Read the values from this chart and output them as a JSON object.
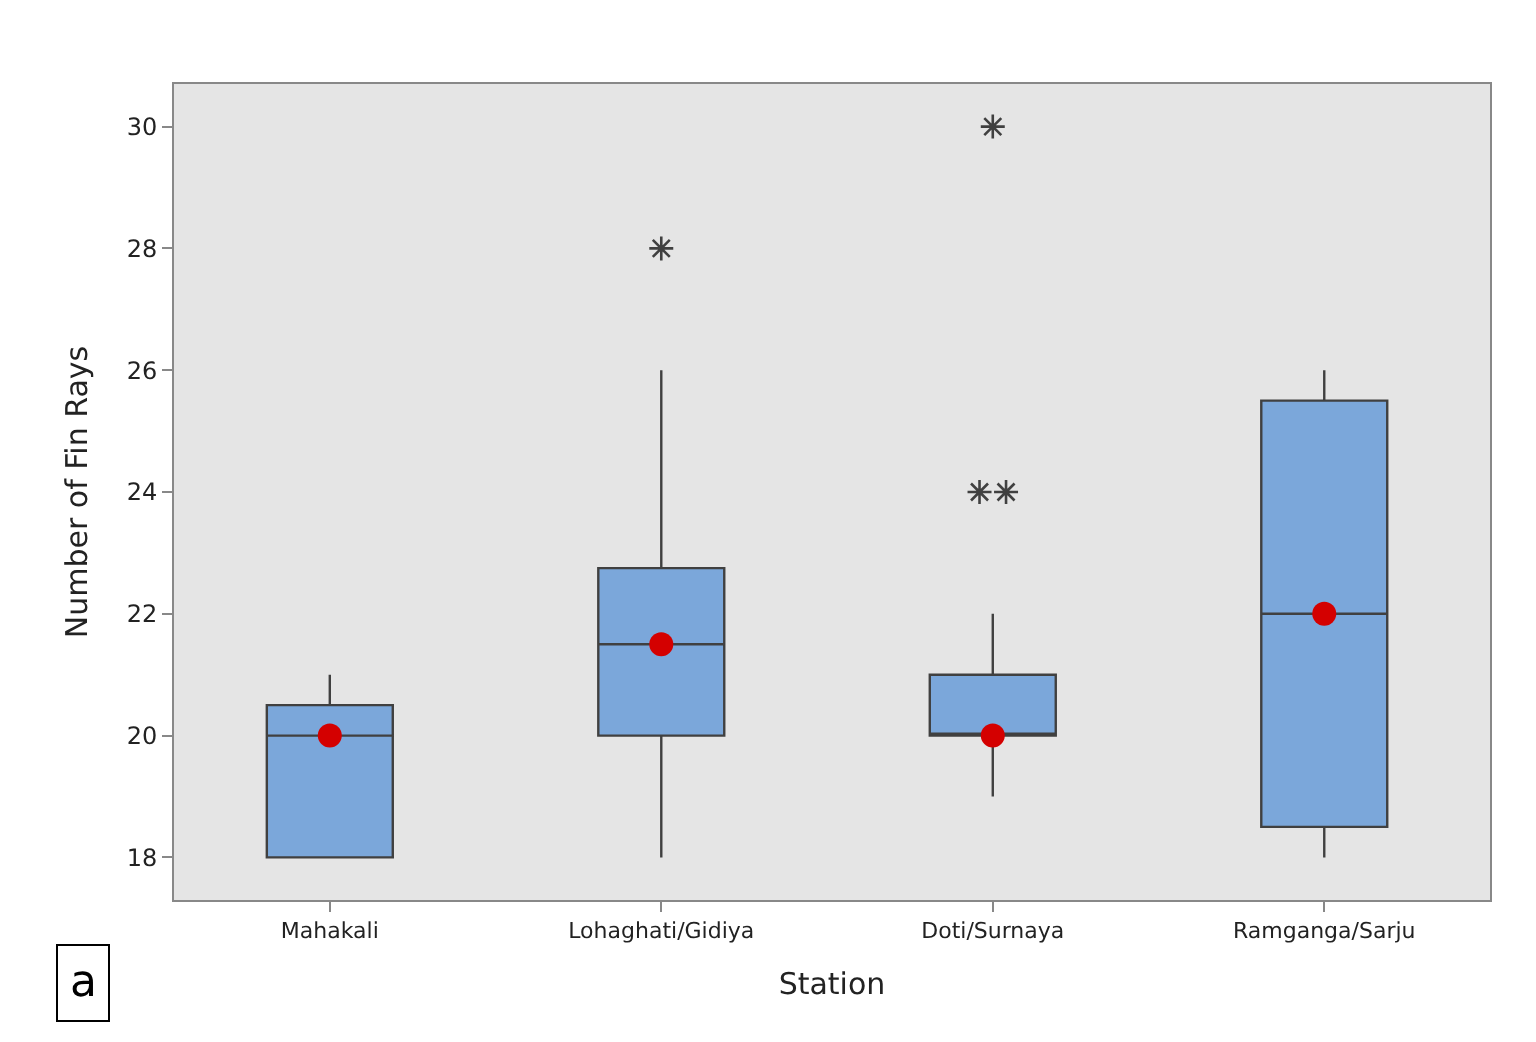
{
  "chart_data": {
    "type": "box",
    "xlabel": "Station",
    "ylabel": "Number of Fin Rays",
    "categories": [
      "Mahakali",
      "Lohaghati/Gidiya",
      "Doti/Surnaya",
      "Ramganga/Sarju"
    ],
    "boxes": [
      {
        "low": 18,
        "q1": 18,
        "median": 20,
        "q3": 20.5,
        "high": 21,
        "mean": 20
      },
      {
        "low": 18,
        "q1": 20,
        "median": 21.5,
        "q3": 22.75,
        "high": 26,
        "mean": 21.5,
        "outliers": [
          28
        ]
      },
      {
        "low": 19,
        "q1": 20,
        "median": 20,
        "q3": 21,
        "high": 22,
        "mean": 20,
        "outliers": [
          24,
          24,
          30
        ]
      },
      {
        "low": 18,
        "q1": 18.5,
        "median": 22,
        "q3": 25.5,
        "high": 26,
        "mean": 22
      }
    ],
    "color": "#7ba7da",
    "ylim": [
      17.3,
      30.7
    ],
    "yticks": [
      18,
      20,
      22,
      24,
      26,
      28,
      30
    ],
    "grid": false,
    "annotations": [
      "a"
    ]
  }
}
